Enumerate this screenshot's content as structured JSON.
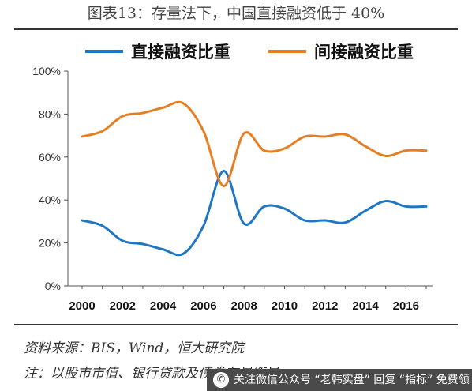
{
  "title": "图表13：存量法下，中国直接融资低于 40%",
  "chart_data": {
    "type": "line",
    "x": [
      2000,
      2001,
      2002,
      2003,
      2004,
      2005,
      2006,
      2007,
      2008,
      2009,
      2010,
      2011,
      2012,
      2013,
      2014,
      2015,
      2016,
      2017
    ],
    "xlabel": "",
    "ylabel": "",
    "ylim": [
      0,
      100
    ],
    "yticks": [
      "0%",
      "20%",
      "40%",
      "60%",
      "80%",
      "100%"
    ],
    "xticks": [
      "2000",
      "2002",
      "2004",
      "2006",
      "2008",
      "2010",
      "2012",
      "2014",
      "2016"
    ],
    "grid": false,
    "legend_position": "top",
    "series": [
      {
        "name": "直接融资比重",
        "color": "#1f77c4",
        "values": [
          30.5,
          28,
          21,
          19.5,
          17,
          15,
          28,
          53.5,
          29,
          37,
          36,
          30.5,
          30.5,
          29.5,
          35,
          39.5,
          37,
          37
        ]
      },
      {
        "name": "间接融资比重",
        "color": "#e67e22",
        "values": [
          69.5,
          72,
          79,
          80.5,
          83,
          85,
          72,
          46.5,
          71,
          63,
          64,
          69.5,
          69.5,
          70.5,
          65,
          60.5,
          63,
          63
        ]
      }
    ]
  },
  "source": "资料来源：BIS，Wind，恒大研究院",
  "note": "注：以股市市值、银行贷款及债券存量衡量",
  "banner": {
    "icon": "wechat-icon",
    "text": "关注微信公众号 “老韩实盘” 回复 “指标” 免费领"
  }
}
